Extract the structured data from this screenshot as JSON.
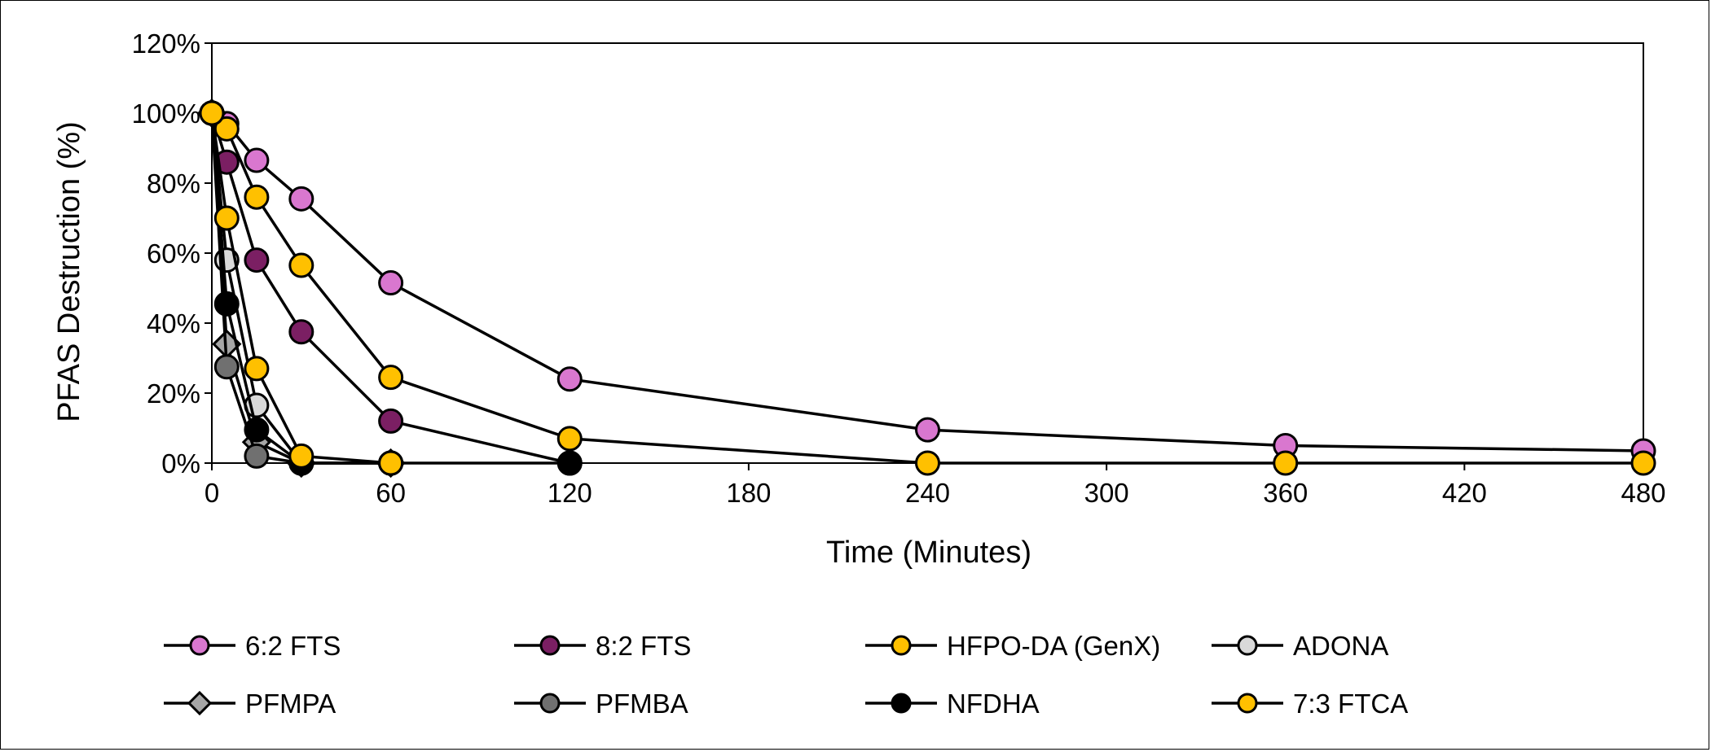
{
  "chart_data": {
    "type": "line",
    "title": "",
    "xlabel": "Time (Minutes)",
    "ylabel": "PFAS Destruction (%)",
    "xlim": [
      0,
      480
    ],
    "ylim": [
      0,
      120
    ],
    "x_ticks": [
      0,
      60,
      120,
      180,
      240,
      300,
      360,
      420,
      480
    ],
    "y_ticks": [
      0,
      20,
      40,
      60,
      80,
      100,
      120
    ],
    "x_tick_labels": [
      "0",
      "60",
      "120",
      "180",
      "240",
      "300",
      "360",
      "420",
      "480"
    ],
    "y_tick_labels": [
      "0%",
      "20%",
      "40%",
      "60%",
      "80%",
      "100%",
      "120%"
    ],
    "grid": false,
    "legend_placement": "bottom",
    "series": [
      {
        "name": "6:2 FTS",
        "color": "#d977cf",
        "marker": "circle",
        "x": [
          0,
          5,
          15,
          30,
          60,
          120,
          240,
          360,
          480
        ],
        "y": [
          100,
          97,
          86.5,
          75.5,
          51.5,
          24,
          9.5,
          5,
          3.5
        ]
      },
      {
        "name": "8:2 FTS",
        "color": "#7b1f63",
        "marker": "circle",
        "x": [
          0,
          5,
          15,
          30,
          60,
          120
        ],
        "y": [
          100,
          86,
          58,
          37.5,
          12,
          0
        ]
      },
      {
        "name": "HFPO-DA (GenX)",
        "color": "#ffc000",
        "marker": "circle",
        "x": [
          0,
          5,
          15,
          30,
          60,
          120,
          240,
          360,
          480
        ],
        "y": [
          100,
          95.5,
          76,
          56.5,
          24.5,
          7,
          0,
          0,
          0
        ]
      },
      {
        "name": "ADONA",
        "color": "#d9d9d9",
        "marker": "circle",
        "x": [
          0,
          5,
          15,
          30,
          60
        ],
        "y": [
          100,
          58,
          16.5,
          0,
          0
        ]
      },
      {
        "name": "PFMPA",
        "color": "#a6a6a6",
        "marker": "diamond",
        "x": [
          0,
          5,
          15,
          30,
          60
        ],
        "y": [
          100,
          34,
          6,
          0,
          0
        ]
      },
      {
        "name": "PFMBA",
        "color": "#707070",
        "marker": "circle",
        "x": [
          0,
          5,
          15,
          30,
          60
        ],
        "y": [
          100,
          27.5,
          2,
          0,
          0
        ]
      },
      {
        "name": "NFDHA",
        "color": "#000000",
        "marker": "circle",
        "x": [
          0,
          5,
          15,
          30,
          60,
          120
        ],
        "y": [
          100,
          45.5,
          9.5,
          0,
          0,
          0
        ]
      },
      {
        "name": "7:3 FTCA",
        "color": "#ffc000",
        "marker": "circle",
        "x": [
          0,
          5,
          15,
          30,
          60
        ],
        "y": [
          100,
          70,
          27,
          2,
          0
        ]
      }
    ]
  }
}
